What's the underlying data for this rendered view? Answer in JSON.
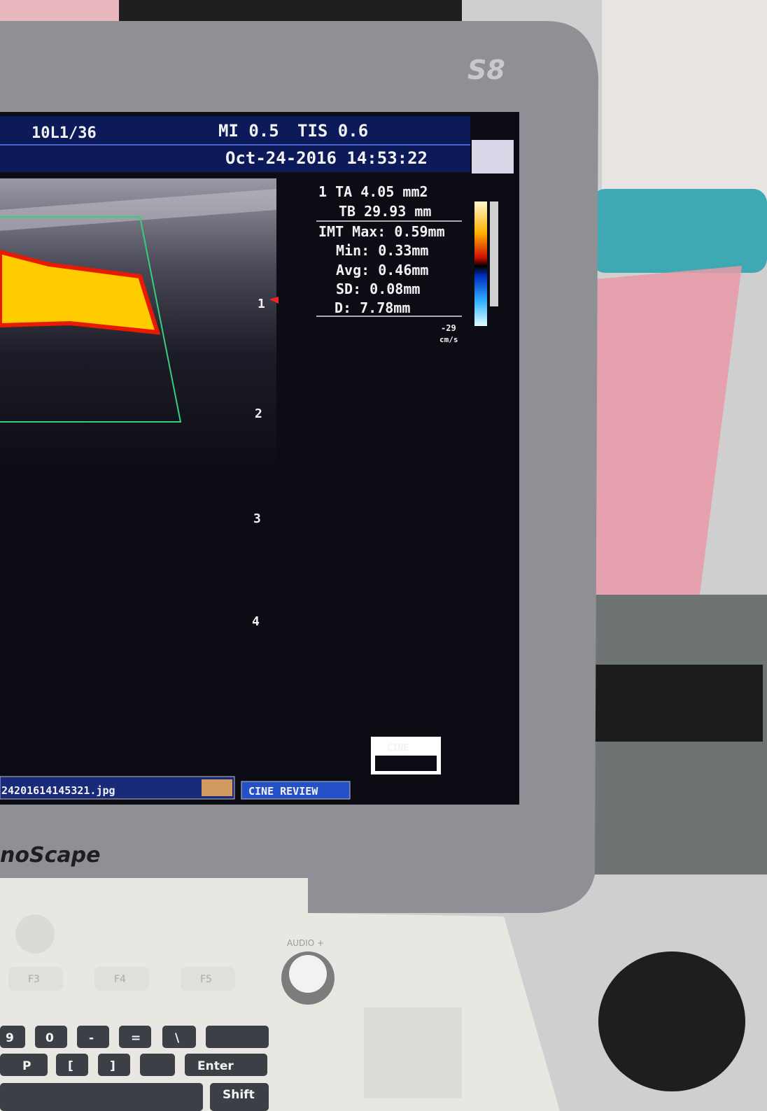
{
  "monitor": {
    "badge": "S8",
    "logo": "noScape"
  },
  "screen": {
    "probe": "10L1/36",
    "mi": "MI 0.5",
    "tis": "TIS 0.6",
    "datetime": "Oct-24-2016 14:53:22",
    "measurements": [
      "1 TA 4.05 mm2",
      "TB 29.93 mm",
      "IMT Max: 0.59mm",
      "Min: 0.33mm",
      "Avg: 0.46mm",
      "SD: 0.08mm",
      "D: 7.78mm"
    ],
    "scale": {
      "velocity": "-29",
      "unit": "cm/s"
    },
    "depth_marks": [
      "1",
      "2",
      "3",
      "4"
    ],
    "cine_label": "CINE",
    "cine_review": "CINE REVIEW",
    "file_name": "24201614145321.jpg"
  },
  "keyboard": {
    "audio": "AUDIO +",
    "function_keys": [
      "F3",
      "F4",
      "F5"
    ],
    "keys_row1": [
      "9",
      "0",
      "-",
      "=",
      "\\"
    ],
    "keys_row2": [
      "P",
      "[",
      "]",
      "Enter"
    ],
    "keys_row3": [
      "Shift"
    ]
  }
}
